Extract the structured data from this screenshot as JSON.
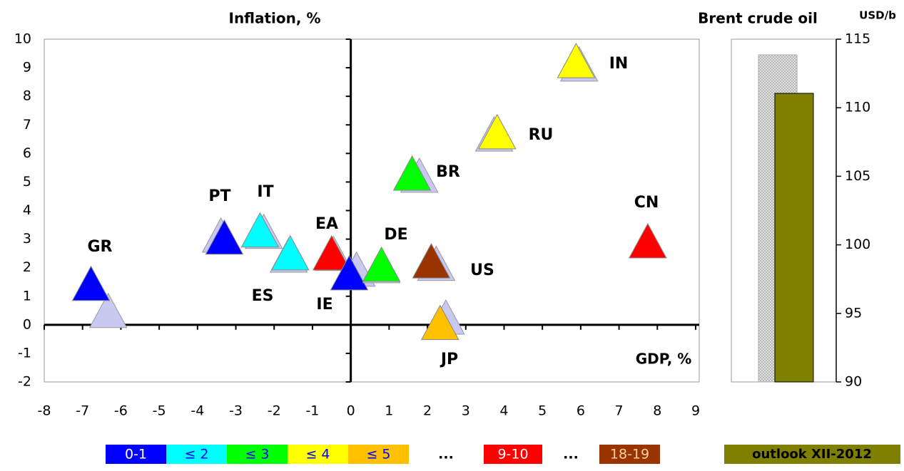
{
  "chart_data": [
    {
      "type": "scatter",
      "x_label": "GDP, %",
      "y_label": "Inflation, %",
      "xlim": [
        -8,
        9
      ],
      "ylim": [
        -2,
        10
      ],
      "xticks": [
        -8,
        -7,
        -6,
        -5,
        -4,
        -3,
        -2,
        -1,
        0,
        1,
        2,
        3,
        4,
        5,
        6,
        7,
        8,
        9
      ],
      "yticks": [
        -2,
        -1,
        0,
        1,
        2,
        3,
        4,
        5,
        6,
        7,
        8,
        9,
        10
      ],
      "shadow_color": "#c8c8f0",
      "points": [
        {
          "label": "GR",
          "color": "#0000ff",
          "x": -6.78,
          "y": 1.25,
          "shadow": {
            "x": -6.33,
            "y": 0.3
          }
        },
        {
          "label": "PT",
          "color": "#0000ff",
          "x": -3.3,
          "y": 2.87,
          "shadow": {
            "x": -3.39,
            "y": 2.94
          }
        },
        {
          "label": "IT",
          "color": "#00ffff",
          "x": -2.37,
          "y": 3.12,
          "shadow": {
            "x": -2.27,
            "y": 3.07
          }
        },
        {
          "label": "ES",
          "color": "#00ffff",
          "x": -1.58,
          "y": 2.32,
          "shadow": {
            "x": -1.62,
            "y": 2.24
          }
        },
        {
          "label": "EA",
          "color": "#ff0000",
          "x": -0.5,
          "y": 2.32,
          "shadow": {
            "x": -0.45,
            "y": 2.3
          }
        },
        {
          "label": "IE",
          "color": "#0000ff",
          "x": -0.04,
          "y": 1.62,
          "shadow": {
            "x": 0.15,
            "y": 1.75
          }
        },
        {
          "label": "DE",
          "color": "#00ff00",
          "x": 0.8,
          "y": 1.92,
          "shadow": {
            "x": 0.8,
            "y": 1.87
          }
        },
        {
          "label": "US",
          "color": "#993300",
          "x": 2.1,
          "y": 2.04,
          "shadow": {
            "x": 2.23,
            "y": 1.95
          }
        },
        {
          "label": "JP",
          "color": "#ffc000",
          "x": 2.33,
          "y": -0.12,
          "shadow": {
            "x": 2.48,
            "y": 0.07
          }
        },
        {
          "label": "BR",
          "color": "#00ff00",
          "x": 1.6,
          "y": 5.11,
          "shadow": {
            "x": 1.79,
            "y": 5.04
          }
        },
        {
          "label": "RU",
          "color": "#ffff00",
          "x": 3.82,
          "y": 6.56,
          "shadow": {
            "x": 3.74,
            "y": 6.48
          }
        },
        {
          "label": "IN",
          "color": "#ffff00",
          "x": 5.88,
          "y": 9.05,
          "shadow": {
            "x": 5.96,
            "y": 8.93
          }
        },
        {
          "label": "CN",
          "color": "#ff0000",
          "x": 7.75,
          "y": 2.74,
          "shadow": {
            "x": 7.75,
            "y": 2.74
          }
        }
      ],
      "legend": [
        {
          "label": "0-1",
          "color": "#0000ff",
          "text_color": "#ffffff"
        },
        {
          "label": "≤ 2",
          "color": "#00ffff",
          "text_color": "#0000ff"
        },
        {
          "label": "≤ 3",
          "color": "#00ff00",
          "text_color": "#0000ff"
        },
        {
          "label": "≤ 4",
          "color": "#ffff00",
          "text_color": "#0000ff"
        },
        {
          "label": "≤ 5",
          "color": "#ffc000",
          "text_color": "#0000ff"
        },
        {
          "label": "...",
          "color": "#ffffff",
          "text_color": "#000000"
        },
        {
          "label": "9-10",
          "color": "#ff0000",
          "text_color": "#ffffff"
        },
        {
          "label": "...",
          "color": "#ffffff",
          "text_color": "#000000"
        },
        {
          "label": "18-19",
          "color": "#993300",
          "text_color": "#ffd0a0"
        }
      ]
    },
    {
      "type": "bar",
      "title": "Brent crude oil",
      "y_label": "USD/b",
      "ylim": [
        90,
        115
      ],
      "yticks": [
        90,
        95,
        100,
        105,
        110,
        115
      ],
      "series": [
        {
          "color": "#dcdcdc",
          "pattern": "crosshatch",
          "values": [
            113.86
          ]
        },
        {
          "name": "outlook XII-2012",
          "color": "#808000",
          "values": [
            111.05
          ]
        }
      ]
    }
  ]
}
